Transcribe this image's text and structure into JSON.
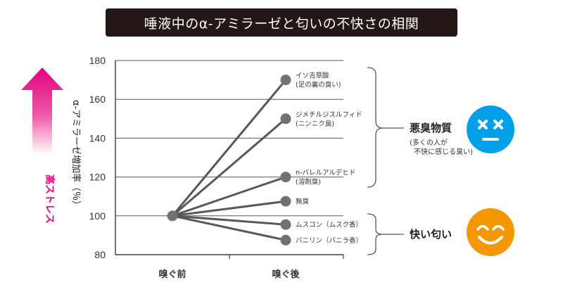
{
  "title": "唾液中のα-アミラーゼと匂いの不快さの相関",
  "stress_label": "高ストレス",
  "colors": {
    "title_bg": "#231815",
    "arrow_top": "#e4007f",
    "line": "#595757",
    "marker": "#727171",
    "bad_face": "#00a0e9",
    "good_face": "#f39800"
  },
  "groups": {
    "bad": {
      "title": "悪臭物質",
      "sub_lines": [
        "(多くの人が",
        "不快に感じる臭い)"
      ],
      "icon": "dizzy-face-icon"
    },
    "good": {
      "title": "快い匂い",
      "icon": "smiling-face-icon"
    }
  },
  "chart_data": {
    "type": "line",
    "title": "唾液中のα-アミラーゼと匂いの不快さの相関",
    "ylabel": "α-アミラーゼ増加率（％）",
    "xlabel": "",
    "categories": [
      "嗅ぐ前",
      "嗅ぐ後"
    ],
    "ylim": [
      80,
      180
    ],
    "yticks": [
      80,
      100,
      120,
      140,
      160,
      180
    ],
    "grid": true,
    "series": [
      {
        "name": "イソ吉草酸",
        "name_sub": "(足の裏の臭い)",
        "values": [
          100,
          170
        ]
      },
      {
        "name": "ジメチルジスルフィド",
        "name_sub": "(ニンニク臭)",
        "values": [
          100,
          150
        ]
      },
      {
        "name": "n-バレルアルデヒド",
        "name_sub": "(溶剤臭)",
        "values": [
          100,
          120
        ]
      },
      {
        "name": "無臭",
        "name_sub": "",
        "values": [
          100,
          107.5
        ]
      },
      {
        "name": "ムスコン（ムスク香）",
        "name_sub": "",
        "values": [
          100,
          95.5
        ]
      },
      {
        "name": "バニリン（バニラ香）",
        "name_sub": "",
        "values": [
          100,
          87.5
        ]
      }
    ]
  }
}
